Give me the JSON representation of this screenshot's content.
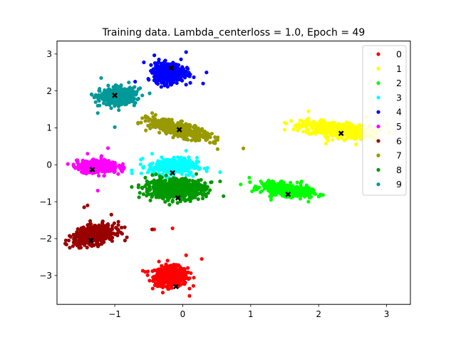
{
  "chart_data": {
    "type": "scatter",
    "title": "Training data. Lambda_centerloss = 1.0, Epoch = 49",
    "xlabel": "",
    "ylabel": "",
    "xlim": [
      -1.85,
      3.35
    ],
    "ylim": [
      -3.78,
      3.35
    ],
    "xticks": [
      -1,
      0,
      1,
      2,
      3
    ],
    "yticks": [
      -3,
      -2,
      -1,
      0,
      1,
      2,
      3
    ],
    "grid": false,
    "legend_position": "top-right",
    "series": [
      {
        "name": "0",
        "color": "#ff0000",
        "center": [
          -0.1,
          -3.3
        ],
        "cluster_mean": [
          -0.17,
          -3.02
        ],
        "spread": [
          0.12,
          0.13
        ],
        "tilt": 0,
        "count": 520,
        "outliers": [
          [
            -0.42,
            -1.75
          ],
          [
            -0.15,
            -1.72
          ],
          [
            0.28,
            -2.55
          ],
          [
            -0.35,
            -2.62
          ],
          [
            0.1,
            -3.55
          ],
          [
            -0.55,
            -2.9
          ],
          [
            0.05,
            -2.45
          ]
        ]
      },
      {
        "name": "1",
        "color": "#ffff00",
        "center": [
          2.33,
          0.85
        ],
        "cluster_mean": [
          2.25,
          0.95
        ],
        "spread": [
          0.25,
          0.1
        ],
        "tilt": -0.2,
        "count": 520,
        "outliers": [
          [
            1.5,
            0.95
          ],
          [
            1.65,
            1.05
          ],
          [
            2.7,
            1.3
          ],
          [
            1.85,
            1.45
          ],
          [
            2.55,
            0.55
          ],
          [
            3.0,
            1.1
          ]
        ]
      },
      {
        "name": "2",
        "color": "#00ff00",
        "center": [
          1.55,
          -0.8
        ],
        "cluster_mean": [
          1.53,
          -0.68
        ],
        "spread": [
          0.18,
          0.08
        ],
        "tilt": -0.2,
        "count": 420,
        "outliers": [
          [
            0.98,
            -0.35
          ],
          [
            1.15,
            -0.45
          ],
          [
            1.85,
            -1.0
          ],
          [
            1.75,
            -0.45
          ],
          [
            1.3,
            -0.95
          ]
        ]
      },
      {
        "name": "3",
        "color": "#00ffff",
        "center": [
          -0.15,
          -0.22
        ],
        "cluster_mean": [
          -0.15,
          -0.05
        ],
        "spread": [
          0.18,
          0.12
        ],
        "tilt": 0,
        "count": 280,
        "outliers": [
          [
            -0.75,
            -0.15
          ],
          [
            -0.45,
            0.3
          ],
          [
            0.05,
            0.38
          ],
          [
            0.25,
            -0.1
          ],
          [
            -0.25,
            -0.5
          ],
          [
            0.55,
            -0.2
          ]
        ]
      },
      {
        "name": "4",
        "color": "#0000ff",
        "center": [
          -0.17,
          2.62
        ],
        "cluster_mean": [
          -0.2,
          2.5
        ],
        "spread": [
          0.11,
          0.13
        ],
        "tilt": 0,
        "count": 520,
        "outliers": [
          [
            -0.5,
            2.3
          ],
          [
            0.3,
            2.2
          ],
          [
            0.35,
            2.5
          ],
          [
            0.05,
            3.05
          ],
          [
            -0.35,
            2.85
          ],
          [
            -0.7,
            2.25
          ]
        ]
      },
      {
        "name": "5",
        "color": "#ff00ff",
        "center": [
          -1.33,
          -0.13
        ],
        "cluster_mean": [
          -1.25,
          -0.05
        ],
        "spread": [
          0.15,
          0.08
        ],
        "tilt": 0,
        "count": 460,
        "outliers": [
          [
            -1.6,
            -0.05
          ],
          [
            -1.4,
            0.3
          ],
          [
            -1.1,
            0.45
          ],
          [
            -1.25,
            -0.7
          ],
          [
            -0.95,
            -0.25
          ],
          [
            -1.2,
            0.2
          ]
        ]
      },
      {
        "name": "6",
        "color": "#990000",
        "center": [
          -1.35,
          -2.05
        ],
        "cluster_mean": [
          -1.3,
          -1.9
        ],
        "spread": [
          0.15,
          0.12
        ],
        "tilt": 0.3,
        "count": 520,
        "outliers": [
          [
            -1.4,
            -1.1
          ],
          [
            -0.85,
            -2.05
          ],
          [
            -1.05,
            -1.35
          ],
          [
            -1.6,
            -2.0
          ],
          [
            -1.45,
            -1.15
          ],
          [
            -0.9,
            -1.7
          ],
          [
            -0.45,
            -1.75
          ]
        ]
      },
      {
        "name": "7",
        "color": "#999900",
        "center": [
          -0.05,
          0.95
        ],
        "cluster_mean": [
          -0.05,
          0.95
        ],
        "spread": [
          0.22,
          0.09
        ],
        "tilt": -0.45,
        "count": 480,
        "outliers": [
          [
            -0.45,
            1.4
          ],
          [
            0.4,
            0.6
          ],
          [
            -0.4,
            1.35
          ],
          [
            0.3,
            0.75
          ],
          [
            -0.3,
            1.2
          ]
        ]
      },
      {
        "name": "8",
        "color": "#009900",
        "center": [
          -0.07,
          -0.9
        ],
        "cluster_mean": [
          -0.12,
          -0.65
        ],
        "spread": [
          0.22,
          0.13
        ],
        "tilt": 0,
        "count": 620,
        "outliers": [
          [
            -0.75,
            -0.6
          ],
          [
            0.55,
            -0.45
          ],
          [
            0.6,
            -0.85
          ],
          [
            -0.55,
            -0.35
          ],
          [
            0.2,
            -0.25
          ],
          [
            -0.15,
            -1.0
          ]
        ]
      },
      {
        "name": "9",
        "color": "#009999",
        "center": [
          -1.0,
          1.88
        ],
        "cluster_mean": [
          -0.95,
          1.85
        ],
        "spread": [
          0.13,
          0.11
        ],
        "tilt": 0.1,
        "count": 480,
        "outliers": [
          [
            -1.2,
            2.35
          ],
          [
            -1.0,
            1.02
          ],
          [
            -1.25,
            1.4
          ],
          [
            -1.25,
            1.6
          ],
          [
            -0.65,
            2.05
          ]
        ]
      }
    ]
  }
}
